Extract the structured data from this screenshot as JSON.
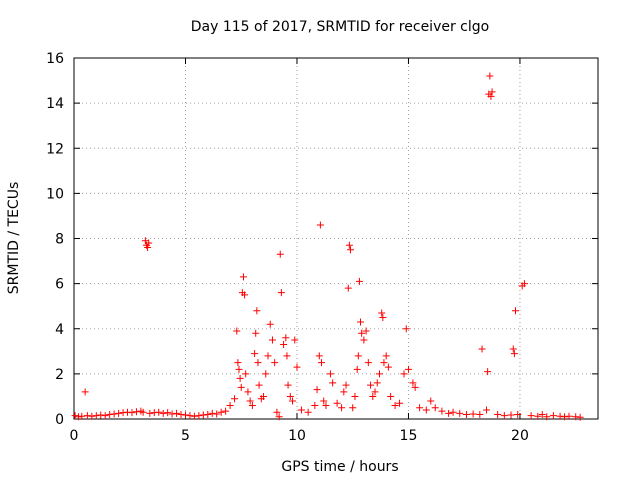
{
  "chart_data": {
    "type": "scatter",
    "title": "Day 115 of 2017, SRMTID for receiver clgo",
    "xlabel": "GPS time / hours",
    "ylabel": "SRMTID / TECUs",
    "xlim": [
      0,
      23.5
    ],
    "ylim": [
      0,
      16
    ],
    "xticks": [
      0,
      5,
      10,
      15,
      20
    ],
    "yticks": [
      0,
      2,
      4,
      6,
      8,
      10,
      12,
      14,
      16
    ],
    "grid": true,
    "marker": "+",
    "color": "#ff0000",
    "points": [
      [
        0.05,
        0.15
      ],
      [
        0.2,
        0.1
      ],
      [
        0.35,
        0.12
      ],
      [
        0.5,
        1.2
      ],
      [
        0.6,
        0.15
      ],
      [
        0.8,
        0.12
      ],
      [
        1.0,
        0.15
      ],
      [
        1.2,
        0.18
      ],
      [
        1.4,
        0.15
      ],
      [
        1.6,
        0.2
      ],
      [
        1.8,
        0.22
      ],
      [
        2.0,
        0.25
      ],
      [
        2.2,
        0.28
      ],
      [
        2.4,
        0.3
      ],
      [
        2.6,
        0.28
      ],
      [
        2.8,
        0.32
      ],
      [
        3.0,
        0.35
      ],
      [
        3.1,
        0.3
      ],
      [
        3.2,
        7.9
      ],
      [
        3.25,
        7.7
      ],
      [
        3.3,
        7.6
      ],
      [
        3.35,
        7.8
      ],
      [
        3.4,
        0.25
      ],
      [
        3.6,
        0.28
      ],
      [
        3.8,
        0.3
      ],
      [
        4.0,
        0.25
      ],
      [
        4.2,
        0.28
      ],
      [
        4.4,
        0.22
      ],
      [
        4.6,
        0.25
      ],
      [
        4.8,
        0.2
      ],
      [
        5.0,
        0.18
      ],
      [
        5.2,
        0.15
      ],
      [
        5.4,
        0.12
      ],
      [
        5.6,
        0.15
      ],
      [
        5.8,
        0.18
      ],
      [
        6.0,
        0.2
      ],
      [
        6.2,
        0.25
      ],
      [
        6.4,
        0.22
      ],
      [
        6.6,
        0.3
      ],
      [
        6.8,
        0.35
      ],
      [
        7.0,
        0.6
      ],
      [
        7.2,
        0.9
      ],
      [
        7.3,
        3.9
      ],
      [
        7.35,
        2.5
      ],
      [
        7.4,
        2.2
      ],
      [
        7.45,
        1.8
      ],
      [
        7.5,
        1.4
      ],
      [
        7.55,
        5.6
      ],
      [
        7.6,
        6.3
      ],
      [
        7.65,
        5.5
      ],
      [
        7.7,
        2.0
      ],
      [
        7.8,
        1.2
      ],
      [
        7.9,
        0.8
      ],
      [
        8.0,
        0.6
      ],
      [
        8.1,
        2.9
      ],
      [
        8.15,
        3.8
      ],
      [
        8.2,
        4.8
      ],
      [
        8.25,
        2.5
      ],
      [
        8.3,
        1.5
      ],
      [
        8.4,
        0.9
      ],
      [
        8.5,
        1.0
      ],
      [
        8.6,
        2.0
      ],
      [
        8.7,
        2.8
      ],
      [
        8.8,
        4.2
      ],
      [
        8.9,
        3.5
      ],
      [
        9.0,
        2.5
      ],
      [
        9.1,
        0.3
      ],
      [
        9.2,
        0.1
      ],
      [
        9.25,
        7.3
      ],
      [
        9.3,
        5.6
      ],
      [
        9.4,
        3.3
      ],
      [
        9.5,
        3.6
      ],
      [
        9.55,
        2.8
      ],
      [
        9.6,
        1.5
      ],
      [
        9.7,
        1.0
      ],
      [
        9.8,
        0.8
      ],
      [
        9.9,
        3.5
      ],
      [
        10.0,
        2.3
      ],
      [
        10.2,
        0.4
      ],
      [
        10.5,
        0.3
      ],
      [
        10.8,
        0.6
      ],
      [
        10.9,
        1.3
      ],
      [
        11.0,
        2.8
      ],
      [
        11.05,
        8.6
      ],
      [
        11.1,
        2.5
      ],
      [
        11.2,
        0.8
      ],
      [
        11.3,
        0.6
      ],
      [
        11.5,
        2.0
      ],
      [
        11.6,
        1.6
      ],
      [
        11.8,
        0.7
      ],
      [
        12.0,
        0.5
      ],
      [
        12.1,
        1.2
      ],
      [
        12.2,
        1.5
      ],
      [
        12.3,
        5.8
      ],
      [
        12.35,
        7.7
      ],
      [
        12.4,
        7.5
      ],
      [
        12.5,
        0.5
      ],
      [
        12.6,
        1.0
      ],
      [
        12.7,
        2.2
      ],
      [
        12.75,
        2.8
      ],
      [
        12.8,
        6.1
      ],
      [
        12.85,
        4.3
      ],
      [
        12.9,
        3.8
      ],
      [
        13.0,
        3.5
      ],
      [
        13.1,
        3.9
      ],
      [
        13.2,
        2.5
      ],
      [
        13.3,
        1.5
      ],
      [
        13.4,
        1.0
      ],
      [
        13.5,
        1.2
      ],
      [
        13.6,
        1.6
      ],
      [
        13.7,
        2.0
      ],
      [
        13.8,
        4.7
      ],
      [
        13.85,
        4.5
      ],
      [
        13.9,
        2.5
      ],
      [
        14.0,
        2.8
      ],
      [
        14.1,
        2.3
      ],
      [
        14.2,
        1.0
      ],
      [
        14.4,
        0.6
      ],
      [
        14.6,
        0.7
      ],
      [
        14.8,
        2.0
      ],
      [
        14.9,
        4.0
      ],
      [
        15.0,
        2.2
      ],
      [
        15.2,
        1.6
      ],
      [
        15.3,
        1.4
      ],
      [
        15.5,
        0.5
      ],
      [
        15.8,
        0.4
      ],
      [
        16.0,
        0.8
      ],
      [
        16.2,
        0.5
      ],
      [
        16.5,
        0.35
      ],
      [
        16.8,
        0.25
      ],
      [
        17.0,
        0.3
      ],
      [
        17.3,
        0.25
      ],
      [
        17.6,
        0.2
      ],
      [
        17.9,
        0.22
      ],
      [
        18.2,
        0.2
      ],
      [
        18.3,
        3.1
      ],
      [
        18.5,
        0.4
      ],
      [
        18.55,
        2.1
      ],
      [
        18.6,
        14.4
      ],
      [
        18.65,
        15.2
      ],
      [
        18.7,
        14.3
      ],
      [
        18.75,
        14.5
      ],
      [
        19.0,
        0.2
      ],
      [
        19.3,
        0.15
      ],
      [
        19.6,
        0.18
      ],
      [
        19.7,
        3.1
      ],
      [
        19.75,
        2.9
      ],
      [
        19.8,
        4.8
      ],
      [
        19.9,
        0.2
      ],
      [
        20.1,
        5.9
      ],
      [
        20.2,
        6.0
      ],
      [
        20.5,
        0.15
      ],
      [
        20.8,
        0.12
      ],
      [
        21.0,
        0.2
      ],
      [
        21.2,
        0.1
      ],
      [
        21.5,
        0.15
      ],
      [
        21.8,
        0.12
      ],
      [
        22.0,
        0.1
      ],
      [
        22.2,
        0.12
      ],
      [
        22.5,
        0.1
      ],
      [
        22.7,
        0.08
      ]
    ]
  }
}
